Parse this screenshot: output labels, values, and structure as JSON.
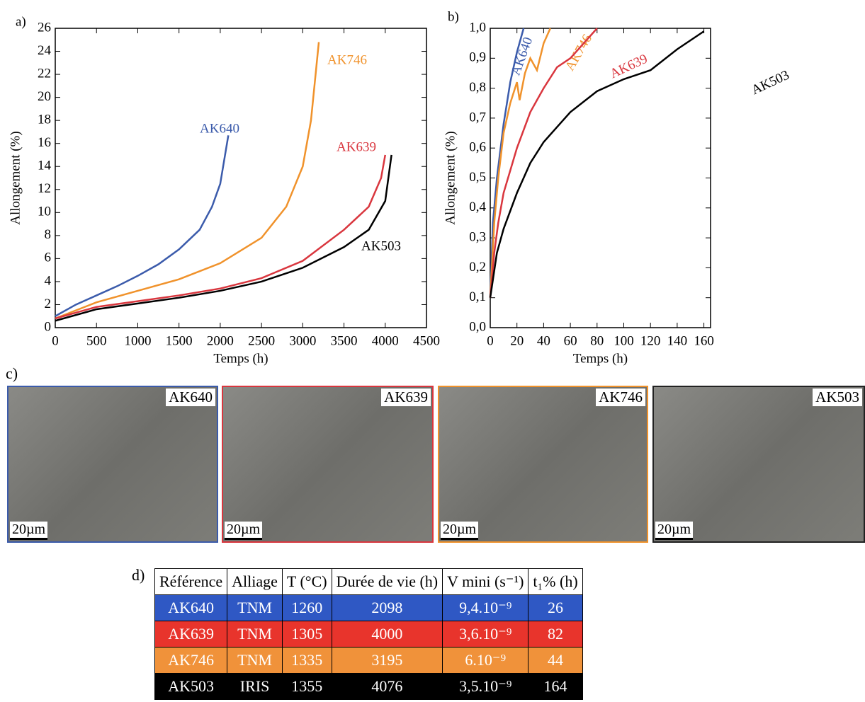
{
  "chart_data": [
    {
      "type": "line",
      "panel_label": "a)",
      "x_label": "Temps (h)",
      "y_label": "Allongement (%)",
      "xlim": [
        0,
        4500
      ],
      "xticks": [
        0,
        500,
        1000,
        1500,
        2000,
        2500,
        3000,
        3500,
        4000,
        4500
      ],
      "ylim": [
        0,
        26
      ],
      "yticks": [
        0,
        2,
        4,
        6,
        8,
        10,
        12,
        14,
        16,
        18,
        20,
        22,
        24,
        26
      ],
      "series": [
        {
          "name": "AK640",
          "color": "#3b5bab",
          "x": [
            0,
            250,
            500,
            750,
            1000,
            1250,
            1500,
            1750,
            1900,
            2000,
            2098
          ],
          "values": [
            1,
            2,
            2.8,
            3.6,
            4.5,
            5.5,
            6.8,
            8.5,
            10.5,
            12.5,
            16.7
          ]
        },
        {
          "name": "AK746",
          "color": "#f0922b",
          "x": [
            0,
            500,
            1000,
            1500,
            2000,
            2500,
            2800,
            3000,
            3100,
            3195
          ],
          "values": [
            0.8,
            2.2,
            3.2,
            4.2,
            5.6,
            7.8,
            10.5,
            14,
            18,
            24.8
          ]
        },
        {
          "name": "AK639",
          "color": "#d9363e",
          "x": [
            0,
            500,
            1000,
            1500,
            2000,
            2500,
            3000,
            3500,
            3800,
            3950,
            4000
          ],
          "values": [
            0.8,
            1.8,
            2.3,
            2.8,
            3.4,
            4.3,
            5.8,
            8.5,
            10.5,
            13,
            15
          ]
        },
        {
          "name": "AK503",
          "color": "#000000",
          "x": [
            0,
            500,
            1000,
            1500,
            2000,
            2500,
            3000,
            3500,
            3800,
            4000,
            4076
          ],
          "values": [
            0.6,
            1.6,
            2.1,
            2.6,
            3.2,
            4,
            5.2,
            7,
            8.5,
            11,
            15
          ]
        }
      ]
    },
    {
      "type": "line",
      "panel_label": "b)",
      "x_label": "Temps (h)",
      "y_label": "Allongement (%)",
      "xlim": [
        0,
        165
      ],
      "xticks": [
        0,
        20,
        40,
        60,
        80,
        100,
        120,
        140,
        160
      ],
      "ylim": [
        0,
        1
      ],
      "yticks": [
        {
          "value": 0,
          "label": "0,0"
        },
        {
          "value": 0.1,
          "label": "0,1"
        },
        {
          "value": 0.2,
          "label": "0,2"
        },
        {
          "value": 0.3,
          "label": "0,3"
        },
        {
          "value": 0.4,
          "label": "0,4"
        },
        {
          "value": 0.5,
          "label": "0,5"
        },
        {
          "value": 0.6,
          "label": "0,6"
        },
        {
          "value": 0.7,
          "label": "0,7"
        },
        {
          "value": 0.8,
          "label": "0,8"
        },
        {
          "value": 0.9,
          "label": "0,9"
        },
        {
          "value": 1,
          "label": "1,0"
        }
      ],
      "series": [
        {
          "name": "AK640",
          "color": "#3b5bab",
          "x": [
            0,
            2,
            5,
            10,
            15,
            20,
            25
          ],
          "values": [
            0.1,
            0.35,
            0.5,
            0.68,
            0.82,
            0.92,
            1
          ]
        },
        {
          "name": "AK746",
          "color": "#f0922b",
          "x": [
            0,
            3,
            6,
            10,
            15,
            20,
            22,
            26,
            30,
            35,
            40,
            45
          ],
          "values": [
            0.1,
            0.35,
            0.5,
            0.65,
            0.75,
            0.82,
            0.76,
            0.85,
            0.9,
            0.86,
            0.95,
            1
          ]
        },
        {
          "name": "AK639",
          "color": "#d9363e",
          "x": [
            0,
            3,
            6,
            10,
            20,
            30,
            40,
            50,
            60,
            70,
            80
          ],
          "values": [
            0.1,
            0.25,
            0.35,
            0.45,
            0.6,
            0.72,
            0.8,
            0.87,
            0.9,
            0.95,
            1
          ]
        },
        {
          "name": "AK503",
          "color": "#000000",
          "x": [
            0,
            5,
            10,
            20,
            30,
            40,
            50,
            60,
            80,
            100,
            120,
            140,
            160
          ],
          "values": [
            0.1,
            0.25,
            0.33,
            0.45,
            0.55,
            0.62,
            0.67,
            0.72,
            0.79,
            0.83,
            0.86,
            0.93,
            0.99
          ]
        }
      ]
    }
  ],
  "micrographs": {
    "panel_label": "c)",
    "items": [
      {
        "name": "AK640",
        "scale": "20µm",
        "color": "#3b5bab"
      },
      {
        "name": "AK639",
        "scale": "20µm",
        "color": "#d9363e"
      },
      {
        "name": "AK746",
        "scale": "20µm",
        "color": "#f0922b"
      },
      {
        "name": "AK503",
        "scale": "20µm",
        "color": "#222222"
      }
    ]
  },
  "table": {
    "panel_label": "d)",
    "header": [
      "Référence",
      "Alliage",
      "T (°C)",
      "Durée de vie (h)",
      "V mini (s⁻¹)",
      "t₁% (h)"
    ],
    "rows": [
      {
        "color": "#2f58c4",
        "cells": [
          "AK640",
          "TNM",
          "1260",
          "2098",
          "9,4.10⁻⁹",
          "26"
        ]
      },
      {
        "color": "#e8342c",
        "cells": [
          "AK639",
          "TNM",
          "1305",
          "4000",
          "3,6.10⁻⁹",
          "82"
        ]
      },
      {
        "color": "#f0923a",
        "cells": [
          "AK746",
          "TNM",
          "1335",
          "3195",
          "6.10⁻⁹",
          "44"
        ]
      },
      {
        "color": "#000000",
        "cells": [
          "AK503",
          "IRIS",
          "1355",
          "4076",
          "3,5.10⁻⁹",
          "164"
        ]
      }
    ]
  }
}
